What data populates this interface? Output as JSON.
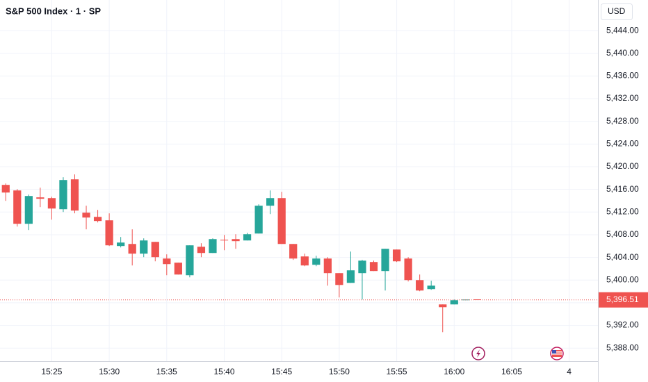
{
  "chart_data": {
    "type": "candlestick",
    "title": "S&P 500 Index · 1 · SP",
    "currency": "USD",
    "up_color": "#26a69a",
    "down_color": "#ef5350",
    "grid": true,
    "categories": [
      null,
      null,
      null,
      null,
      "15:25",
      null,
      null,
      null,
      null,
      "15:30",
      null,
      null,
      null,
      null,
      "15:35",
      null,
      null,
      null,
      null,
      "15:40",
      null,
      null,
      null,
      null,
      "15:45",
      null,
      null,
      null,
      null,
      "15:50",
      null,
      null,
      null,
      null,
      "15:55",
      null,
      null,
      null,
      null,
      "16:00",
      null,
      null,
      null,
      null,
      "16:05",
      null,
      null,
      null,
      null,
      "4",
      null,
      null
    ],
    "open": [
      5416.79,
      5415.81,
      5409.93,
      5414.59,
      5414.46,
      5412.5,
      5417.77,
      5411.89,
      5411.15,
      5410.54,
      5406.01,
      5406.37,
      5404.66,
      5406.74,
      5403.8,
      5403.07,
      5400.86,
      5405.88,
      5404.78,
      5407.11,
      5407.23,
      5406.99,
      5408.21,
      5413.12,
      5414.46,
      5406.37,
      5404.17,
      5402.7,
      5403.8,
      5401.23,
      5399.51,
      5401.23,
      5403.19,
      5401.6,
      5405.39,
      5403.8,
      5400.0,
      5398.41,
      5395.71,
      5395.71,
      5396.45,
      5396.6,
      null,
      null,
      null,
      null,
      null,
      null,
      null,
      null,
      null,
      null
    ],
    "high": [
      5417.04,
      5416.06,
      5415.08,
      5416.3,
      5414.71,
      5418.14,
      5418.63,
      5413.12,
      5412.38,
      5411.77,
      5407.6,
      5408.95,
      5407.36,
      5406.74,
      5404.54,
      5403.07,
      5406.13,
      5406.5,
      5407.36,
      5407.97,
      5408.09,
      5408.34,
      5413.36,
      5415.81,
      5415.57,
      5406.37,
      5404.66,
      5404.29,
      5404.05,
      5401.23,
      5405.03,
      5403.56,
      5403.43,
      5405.52,
      5405.39,
      5404.05,
      5400.98,
      5399.88,
      5395.71,
      5396.57,
      5396.57,
      5396.6,
      null,
      null,
      null,
      null,
      null,
      null,
      null,
      null,
      null,
      null
    ],
    "low": [
      5413.97,
      5409.44,
      5408.83,
      5412.87,
      5410.66,
      5412.01,
      5411.77,
      5408.95,
      5410.17,
      5406.01,
      5405.76,
      5402.58,
      5404.05,
      5403.31,
      5400.86,
      5400.98,
      5400.49,
      5404.05,
      5404.78,
      5405.27,
      5405.52,
      5406.99,
      5408.21,
      5411.64,
      5406.37,
      5403.56,
      5402.45,
      5402.45,
      5399.02,
      5396.94,
      5399.51,
      5396.57,
      5401.6,
      5398.16,
      5403.19,
      5399.76,
      5398.04,
      5398.29,
      5390.81,
      5395.71,
      5396.45,
      5396.51,
      null,
      null,
      null,
      null,
      null,
      null,
      null,
      null,
      null,
      null
    ],
    "close": [
      5415.44,
      5409.93,
      5414.83,
      5414.34,
      5412.62,
      5417.65,
      5412.26,
      5411.03,
      5410.42,
      5406.13,
      5406.62,
      5404.66,
      5406.99,
      5404.05,
      5402.82,
      5400.98,
      5406.13,
      5404.78,
      5407.23,
      5406.99,
      5406.87,
      5408.09,
      5413.12,
      5414.46,
      5406.37,
      5403.8,
      5402.58,
      5403.8,
      5401.23,
      5399.14,
      5401.72,
      5403.43,
      5401.6,
      5405.52,
      5403.31,
      5400.0,
      5398.16,
      5399.02,
      5395.22,
      5396.45,
      5396.57,
      5396.51,
      null,
      null,
      null,
      null,
      null,
      null,
      null,
      null,
      null,
      null
    ],
    "ylim": [
      5385.7,
      5449.4
    ],
    "yticks": [
      {
        "value": 5388,
        "label": "5,388.00"
      },
      {
        "value": 5392,
        "label": "5,392.00"
      },
      {
        "value": 5396,
        "label": "5,396.00"
      },
      {
        "value": 5400,
        "label": "5,400.00"
      },
      {
        "value": 5404,
        "label": "5,404.00"
      },
      {
        "value": 5408,
        "label": "5,408.00"
      },
      {
        "value": 5412,
        "label": "5,412.00"
      },
      {
        "value": 5416,
        "label": "5,416.00"
      },
      {
        "value": 5420,
        "label": "5,420.00"
      },
      {
        "value": 5424,
        "label": "5,424.00"
      },
      {
        "value": 5428,
        "label": "5,428.00"
      },
      {
        "value": 5432,
        "label": "5,432.00"
      },
      {
        "value": 5436,
        "label": "5,436.00"
      },
      {
        "value": 5440,
        "label": "5,440.00"
      },
      {
        "value": 5444,
        "label": "5,444.00"
      }
    ],
    "last_price": {
      "value": 5396.51,
      "label": "5,396.51"
    }
  }
}
